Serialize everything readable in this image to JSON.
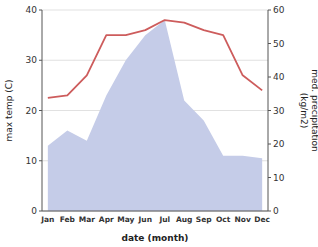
{
  "chart_data": {
    "type": "line",
    "xlabel": "date (month)",
    "ylabel": "max temp (C)",
    "y2label": "med. precipitation\n(kg/m2)",
    "categories": [
      "Jan",
      "Feb",
      "Mar",
      "Apr",
      "May",
      "Jun",
      "Jul",
      "Aug",
      "Sep",
      "Oct",
      "Nov",
      "Dec"
    ],
    "series": [
      {
        "type": "area",
        "color": "#c5cce8",
        "values": [
          13.0,
          16.0,
          14.0,
          23.0,
          30.0,
          35.0,
          38.0,
          22.0,
          18.0,
          11.0,
          11.0,
          10.5
        ]
      },
      {
        "type": "line",
        "color": "#cd5c5c",
        "values": [
          22.5,
          23.0,
          27.0,
          35.0,
          35.0,
          36.0,
          38.0,
          37.5,
          36.0,
          35.0,
          27.0,
          24.0
        ]
      }
    ],
    "ylim": [
      0,
      40
    ],
    "yticks": [
      0,
      10,
      20,
      30,
      40
    ],
    "y2lim": [
      0,
      60
    ],
    "y2ticks": [
      0,
      10,
      20,
      30,
      40,
      50,
      60
    ],
    "grid": true
  }
}
